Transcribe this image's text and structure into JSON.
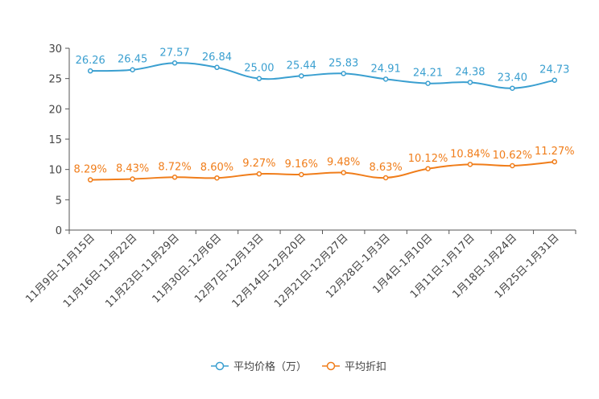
{
  "chart_data": {
    "type": "line",
    "title": "",
    "xlabel": "",
    "ylabel": "",
    "ylim": [
      0,
      30
    ],
    "yticks": [
      0,
      5,
      10,
      15,
      20,
      25,
      30
    ],
    "categories": [
      "11月9日-11月15日",
      "11月16日-11月22日",
      "11月23日-11月29日",
      "11月30日-12月6日",
      "12月7日-12月13日",
      "12月14日-12月20日",
      "12月21日-12月27日",
      "12月28日-1月3日",
      "1月4日-1月10日",
      "1月11日-1月17日",
      "1月18日-1月24日",
      "1月25日-1月31日"
    ],
    "series": [
      {
        "name": "平均价格（万）",
        "color": "#3a9fd0",
        "values": [
          26.26,
          26.45,
          27.57,
          26.84,
          25.0,
          25.44,
          25.83,
          24.91,
          24.21,
          24.38,
          23.4,
          24.73
        ],
        "labels": [
          "26.26",
          "26.45",
          "27.57",
          "26.84",
          "25.00",
          "25.44",
          "25.83",
          "24.91",
          "24.21",
          "24.38",
          "23.40",
          "24.73"
        ]
      },
      {
        "name": "平均折扣",
        "color": "#f07d1a",
        "values": [
          8.29,
          8.43,
          8.72,
          8.6,
          9.27,
          9.16,
          9.48,
          8.63,
          10.12,
          10.84,
          10.62,
          11.27
        ],
        "labels": [
          "8.29%",
          "8.43%",
          "8.72%",
          "8.60%",
          "9.27%",
          "9.16%",
          "9.48%",
          "8.63%",
          "10.12%",
          "10.84%",
          "10.62%",
          "11.27%"
        ]
      }
    ],
    "legend_position": "bottom-center",
    "grid": false
  }
}
